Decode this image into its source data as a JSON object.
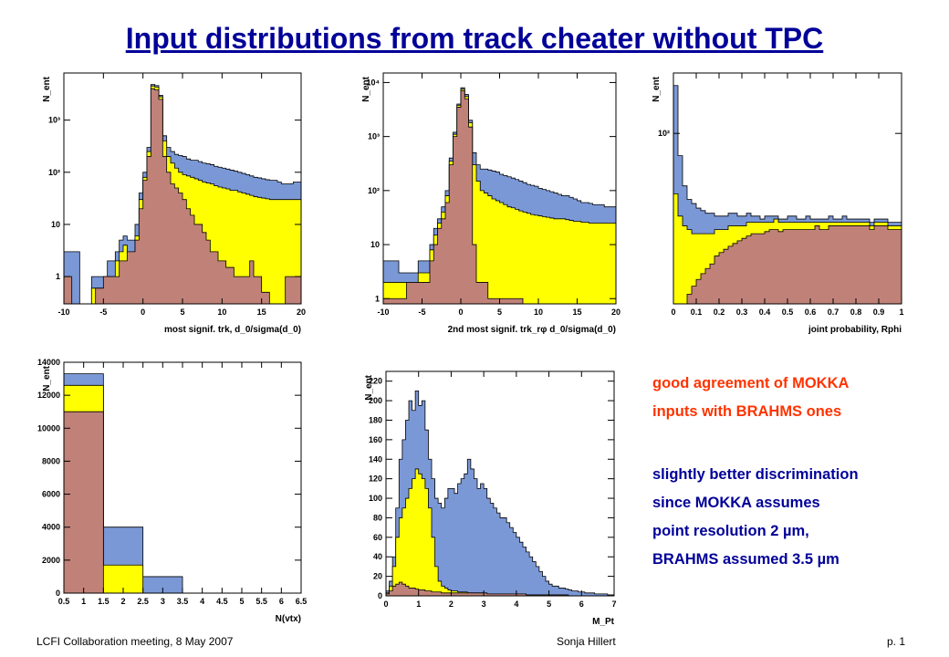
{
  "slide": {
    "title": "Input distributions from track cheater without TPC",
    "footer_left": "LCFI Collaboration meeting, 8 May 2007",
    "footer_center": "Sonja Hillert",
    "footer_right": "p. 1"
  },
  "notes": {
    "agreement": [
      "good agreement of MOKKA",
      "inputs with BRAHMS ones"
    ],
    "discrimination": [
      "slightly better discrimination",
      "since MOKKA assumes",
      "point resolution 2 µm,",
      "BRAHMS assumed 3.5 µm"
    ],
    "agreement_color": "#ff3300",
    "discrimination_color": "#000099"
  },
  "colors": {
    "blue": "#7b98d6",
    "yellow": "#ffff00",
    "brown": "#c08278"
  },
  "chart_data": [
    {
      "type": "histogram",
      "ylabel": "N_ent",
      "xlabel": "most signif. trk, d_0/sigma(d_0)",
      "xlim": [
        -10,
        20
      ],
      "ylog": true,
      "ylim": [
        0.3,
        8000
      ],
      "xticks": [
        "-10",
        "-5",
        "0",
        "5",
        "10",
        "15",
        "20"
      ],
      "yticks": [
        {
          "v": 1,
          "t": "1"
        },
        {
          "v": 10,
          "t": "10"
        },
        {
          "v": 100,
          "t": "10²"
        },
        {
          "v": 1000,
          "t": "10³"
        }
      ],
      "bins": 60,
      "series": [
        {
          "color": "blue",
          "values": [
            3,
            3,
            3,
            3,
            0,
            0,
            0,
            1,
            1,
            1,
            1,
            2,
            2,
            3,
            5,
            6,
            5,
            5,
            10,
            40,
            100,
            300,
            4800,
            4600,
            3000,
            500,
            300,
            250,
            220,
            210,
            200,
            180,
            170,
            170,
            160,
            150,
            145,
            140,
            130,
            125,
            120,
            115,
            110,
            105,
            100,
            95,
            90,
            85,
            80,
            78,
            75,
            72,
            70,
            70,
            65,
            60,
            60,
            60,
            65,
            65
          ]
        },
        {
          "color": "yellow",
          "values": [
            0,
            0,
            0,
            0,
            0,
            0,
            0,
            0.6,
            0.6,
            0.6,
            0.6,
            1,
            1,
            2,
            3,
            4,
            3,
            3,
            6,
            30,
            80,
            250,
            4500,
            4300,
            2800,
            400,
            200,
            150,
            120,
            100,
            90,
            85,
            80,
            75,
            70,
            65,
            62,
            60,
            55,
            52,
            50,
            48,
            45,
            45,
            42,
            40,
            38,
            36,
            34,
            33,
            32,
            31,
            30,
            30,
            30,
            30,
            30,
            30,
            30,
            30
          ]
        },
        {
          "color": "brown",
          "values": [
            1,
            1,
            0,
            0,
            0,
            0,
            0,
            0,
            0.6,
            0.6,
            1,
            1,
            1,
            1,
            2,
            2,
            3,
            3,
            5,
            20,
            70,
            200,
            4000,
            3800,
            2500,
            200,
            100,
            60,
            50,
            40,
            30,
            20,
            15,
            10,
            10,
            7,
            5,
            3,
            3,
            2,
            2,
            1.5,
            1.5,
            1,
            1,
            1,
            1,
            2,
            1,
            1,
            0.5,
            0.5,
            0,
            0,
            0,
            0,
            1,
            1,
            1,
            1
          ]
        }
      ]
    },
    {
      "type": "histogram",
      "ylabel": "N_ent",
      "xlabel": "2nd most signif. trk_rφ d_0/sigma(d_0)",
      "xlim": [
        -10,
        20
      ],
      "ylog": true,
      "ylim": [
        0.8,
        15000
      ],
      "xticks": [
        "-10",
        "-5",
        "0",
        "5",
        "10",
        "15",
        "20"
      ],
      "yticks": [
        {
          "v": 1,
          "t": "1"
        },
        {
          "v": 10,
          "t": "10"
        },
        {
          "v": 100,
          "t": "10²"
        },
        {
          "v": 1000,
          "t": "10³"
        },
        {
          "v": 10000,
          "t": "10⁴"
        }
      ],
      "bins": 60,
      "series": [
        {
          "color": "blue",
          "values": [
            5,
            5,
            5,
            5,
            3,
            3,
            3,
            3,
            3,
            5,
            5,
            5,
            10,
            20,
            30,
            50,
            100,
            400,
            1200,
            4000,
            8000,
            6000,
            2000,
            500,
            300,
            250,
            250,
            240,
            230,
            220,
            200,
            190,
            180,
            170,
            160,
            150,
            140,
            130,
            125,
            120,
            110,
            105,
            100,
            95,
            90,
            85,
            80,
            80,
            75,
            70,
            65,
            60,
            60,
            58,
            55,
            55,
            55,
            50,
            50,
            50
          ]
        },
        {
          "color": "yellow",
          "values": [
            2,
            2,
            2,
            2,
            2,
            2,
            2,
            2,
            2,
            3,
            3,
            3,
            8,
            15,
            25,
            40,
            80,
            350,
            1100,
            3800,
            7500,
            5500,
            1800,
            300,
            150,
            100,
            90,
            80,
            70,
            65,
            60,
            55,
            50,
            48,
            45,
            42,
            40,
            38,
            36,
            35,
            34,
            33,
            32,
            31,
            30,
            30,
            30,
            29,
            28,
            27,
            27,
            26,
            26,
            25,
            25,
            25,
            25,
            25,
            25,
            25
          ]
        },
        {
          "color": "brown",
          "values": [
            1,
            1,
            1,
            1,
            1,
            1,
            2,
            2,
            2,
            2,
            2,
            2,
            5,
            10,
            20,
            30,
            60,
            300,
            1000,
            3500,
            7000,
            5000,
            1500,
            10,
            2,
            2,
            2,
            1,
            1,
            1,
            1,
            1,
            1,
            1,
            1,
            1,
            0.5,
            0.5,
            0.5,
            0.5,
            0.5,
            0.5,
            0.5,
            0.5,
            0.5,
            0.5,
            0.5,
            0.5,
            0.5,
            0.5,
            0.5,
            0.5,
            0.5,
            0.5,
            0.5,
            0.5,
            0.5,
            0.5,
            0.5,
            0.5
          ]
        }
      ]
    },
    {
      "type": "histogram",
      "ylabel": "N_ent",
      "xlabel": "joint probability, Rphi",
      "xlim": [
        0,
        1
      ],
      "ylog": true,
      "ylim": [
        2,
        400
      ],
      "xticks": [
        "0",
        "0.1",
        "0.2",
        "0.3",
        "0.4",
        "0.5",
        "0.6",
        "0.7",
        "0.8",
        "0.9",
        "1"
      ],
      "yticks": [
        {
          "v": 100,
          "t": "10²"
        }
      ],
      "bins": 50,
      "series": [
        {
          "color": "blue",
          "values": [
            300,
            60,
            30,
            22,
            20,
            18,
            17,
            16,
            16,
            15,
            15,
            15,
            16,
            16,
            15,
            15,
            16,
            15,
            15,
            14,
            15,
            15,
            15,
            14,
            14,
            15,
            15,
            14,
            14,
            15,
            14,
            14,
            14,
            14,
            15,
            14,
            14,
            15,
            14,
            14,
            14,
            14,
            14,
            13,
            14,
            14,
            14,
            13,
            13,
            13
          ]
        },
        {
          "color": "yellow",
          "values": [
            25,
            15,
            12,
            11,
            10,
            10,
            10,
            10,
            10,
            11,
            11,
            11,
            12,
            12,
            12,
            12,
            13,
            13,
            13,
            13,
            13,
            13,
            14,
            13,
            13,
            13,
            13,
            13,
            13,
            13,
            13,
            13,
            13,
            13,
            13,
            13,
            13,
            13,
            13,
            13,
            13,
            13,
            13,
            12,
            13,
            13,
            13,
            12,
            12,
            12
          ]
        },
        {
          "color": "brown",
          "values": [
            0,
            0,
            2,
            2.5,
            3,
            3.5,
            4,
            4.5,
            5,
            6,
            6.5,
            7,
            7.5,
            8,
            8.5,
            9,
            9.5,
            10,
            10,
            10,
            10.5,
            11,
            11,
            10.5,
            11,
            11,
            11,
            11,
            11,
            11,
            11,
            12,
            11,
            11,
            12,
            12,
            12,
            12,
            12,
            12,
            12,
            12,
            12,
            11,
            12,
            12,
            12,
            11,
            11,
            11
          ]
        }
      ]
    },
    {
      "type": "histogram",
      "ylabel": "N_ent",
      "xlabel": "N(vtx)",
      "xlim": [
        0.5,
        6.5
      ],
      "ylog": false,
      "ylim": [
        0,
        14000
      ],
      "xticks": [
        "0.5",
        "1",
        "1.5",
        "2",
        "2.5",
        "3",
        "3.5",
        "4",
        "4.5",
        "5",
        "5.5",
        "6",
        "6.5"
      ],
      "yticks": [
        {
          "v": 0,
          "t": "0"
        },
        {
          "v": 2000,
          "t": "2000"
        },
        {
          "v": 4000,
          "t": "4000"
        },
        {
          "v": 6000,
          "t": "6000"
        },
        {
          "v": 8000,
          "t": "8000"
        },
        {
          "v": 10000,
          "t": "10000"
        },
        {
          "v": 12000,
          "t": "12000"
        },
        {
          "v": 14000,
          "t": "14000"
        }
      ],
      "bins": 6,
      "series": [
        {
          "color": "blue",
          "values": [
            13300,
            4000,
            1000,
            0,
            0,
            0
          ]
        },
        {
          "color": "yellow",
          "values": [
            12600,
            1700,
            0,
            0,
            0,
            0
          ]
        },
        {
          "color": "brown",
          "values": [
            11000,
            0,
            0,
            0,
            0,
            0
          ]
        }
      ]
    },
    {
      "type": "histogram",
      "ylabel": "N_ent",
      "xlabel": "M_Pt",
      "xlim": [
        0,
        7
      ],
      "ylog": false,
      "ylim": [
        0,
        230
      ],
      "xticks": [
        "0",
        "1",
        "2",
        "3",
        "4",
        "5",
        "6",
        "7"
      ],
      "yticks": [
        {
          "v": 0,
          "t": "0"
        },
        {
          "v": 20,
          "t": "20"
        },
        {
          "v": 40,
          "t": "40"
        },
        {
          "v": 60,
          "t": "60"
        },
        {
          "v": 80,
          "t": "80"
        },
        {
          "v": 100,
          "t": "100"
        },
        {
          "v": 120,
          "t": "120"
        },
        {
          "v": 140,
          "t": "140"
        },
        {
          "v": 160,
          "t": "160"
        },
        {
          "v": 180,
          "t": "180"
        },
        {
          "v": 200,
          "t": "200"
        },
        {
          "v": 220,
          "t": "220"
        }
      ],
      "bins": 70,
      "series": [
        {
          "color": "blue",
          "values": [
            5,
            15,
            40,
            90,
            140,
            160,
            180,
            200,
            190,
            210,
            195,
            200,
            170,
            140,
            120,
            100,
            95,
            90,
            100,
            110,
            110,
            105,
            115,
            120,
            125,
            140,
            130,
            120,
            110,
            115,
            110,
            100,
            95,
            90,
            85,
            80,
            80,
            75,
            70,
            65,
            60,
            55,
            50,
            45,
            40,
            35,
            30,
            25,
            20,
            15,
            12,
            10,
            10,
            8,
            8,
            7,
            6,
            5,
            5,
            4,
            4,
            3,
            3,
            3,
            2,
            2,
            2,
            2,
            1,
            1
          ]
        },
        {
          "color": "yellow",
          "values": [
            3,
            10,
            30,
            60,
            80,
            90,
            100,
            110,
            120,
            130,
            125,
            120,
            110,
            90,
            60,
            30,
            15,
            10,
            8,
            6,
            5,
            5,
            4,
            4,
            4,
            3,
            3,
            3,
            3,
            3,
            2,
            2,
            2,
            2,
            2,
            2,
            2,
            2,
            1,
            1,
            1,
            1,
            1,
            1,
            1,
            1,
            0,
            0,
            0,
            0,
            0,
            0,
            0,
            0,
            0,
            0,
            0,
            0,
            0,
            0,
            0,
            0,
            0,
            0,
            0,
            0,
            0,
            0,
            0,
            0
          ]
        },
        {
          "color": "brown",
          "values": [
            2,
            5,
            10,
            12,
            14,
            12,
            10,
            8,
            8,
            7,
            6,
            6,
            5,
            5,
            4,
            4,
            4,
            3,
            3,
            3,
            3,
            3,
            3,
            3,
            3,
            3,
            3,
            3,
            3,
            3,
            3,
            2,
            2,
            2,
            2,
            2,
            2,
            2,
            2,
            2,
            2,
            2,
            2,
            1,
            1,
            1,
            1,
            1,
            1,
            1,
            1,
            1,
            1,
            1,
            1,
            1,
            0,
            0,
            0,
            0,
            0,
            0,
            0,
            0,
            0,
            0,
            0,
            0,
            0,
            0
          ]
        }
      ]
    }
  ]
}
